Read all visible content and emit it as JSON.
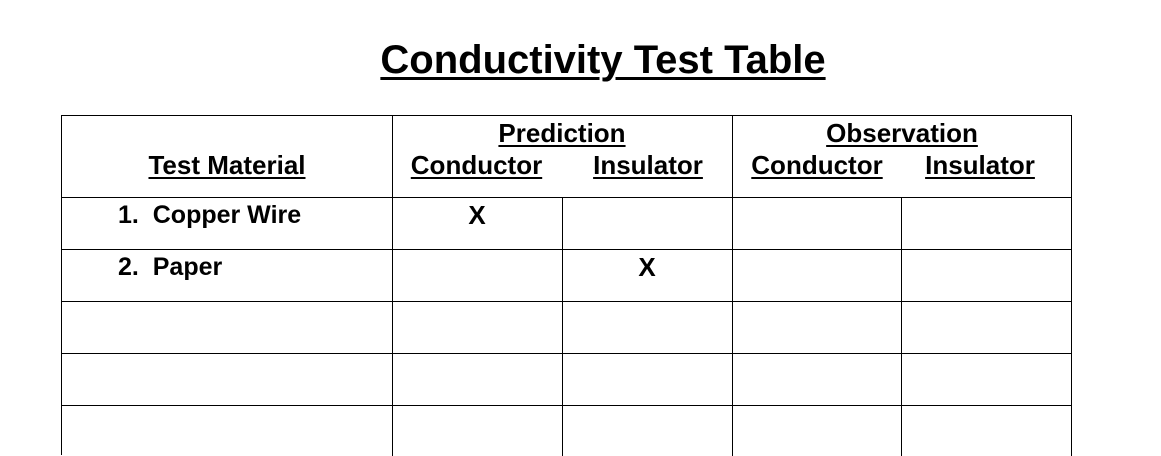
{
  "title": "Conductivity Test Table",
  "header": {
    "test_material": "Test Material",
    "prediction": "Prediction",
    "observation": "Observation",
    "conductor": "Conductor",
    "insulator": "Insulator"
  },
  "rows": [
    {
      "material": "1.  Copper Wire",
      "pred_conductor": "X",
      "pred_insulator": "",
      "obs_conductor": "",
      "obs_insulator": ""
    },
    {
      "material": "2.  Paper",
      "pred_conductor": "",
      "pred_insulator": "X",
      "obs_conductor": "",
      "obs_insulator": ""
    },
    {
      "material": "",
      "pred_conductor": "",
      "pred_insulator": "",
      "obs_conductor": "",
      "obs_insulator": ""
    },
    {
      "material": "",
      "pred_conductor": "",
      "pred_insulator": "",
      "obs_conductor": "",
      "obs_insulator": ""
    },
    {
      "material": "",
      "pred_conductor": "",
      "pred_insulator": "",
      "obs_conductor": "",
      "obs_insulator": ""
    }
  ]
}
